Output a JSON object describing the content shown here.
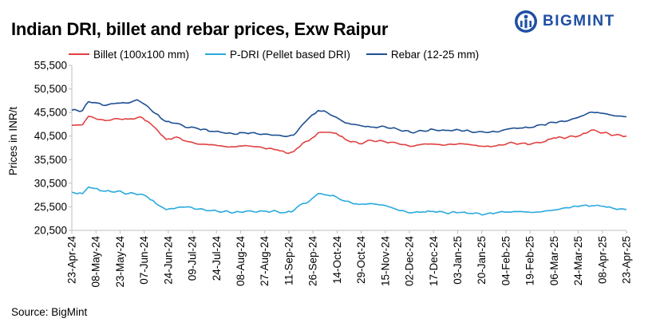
{
  "header": {
    "title": "Indian DRI, billet and rebar prices, Exw  Raipur",
    "brand_name": "BIGMINT"
  },
  "footer": {
    "source": "Source: BigMint"
  },
  "colors": {
    "billet": "#e04142",
    "pdri": "#2aa9df",
    "rebar": "#1d4f93",
    "axis": "#bfbfbf",
    "brand": "#1f4fa3"
  },
  "chart_data": {
    "type": "line",
    "title": "Indian DRI, billet and rebar prices, Exw  Raipur",
    "xlabel": "",
    "ylabel": "Prices in INR/t",
    "ylim": [
      20500,
      55500
    ],
    "yticks": [
      20500,
      25500,
      30500,
      35500,
      40500,
      45500,
      50500,
      55500
    ],
    "ytick_labels": [
      "20,500",
      "25,500",
      "30,500",
      "35,500",
      "40,500",
      "45,500",
      "50,500",
      "55,500"
    ],
    "x_range": [
      "2024-04-23",
      "2025-04-23"
    ],
    "categories": [
      "23-Apr-24",
      "08-May-24",
      "23-May-24",
      "07-Jun-24",
      "24-Jun-24",
      "09-Jul-24",
      "24-Jul-24",
      "08-Aug-24",
      "27-Aug-24",
      "11-Sep-24",
      "26-Sep-24",
      "14-Oct-24",
      "29-Oct-24",
      "15-Nov-24",
      "02-Dec-24",
      "17-Dec-24",
      "03-Jan-25",
      "20-Jan-25",
      "04-Feb-25",
      "19-Feb-25",
      "06-Mar-25",
      "24-Mar-25",
      "08-Apr-25",
      "23-Apr-25"
    ],
    "legend_position": "top",
    "grid": false,
    "series": [
      {
        "name": "Billet (100x100 mm)",
        "color": "#e04142",
        "points": [
          [
            "2024-04-23",
            42800
          ],
          [
            "2024-04-30",
            42900
          ],
          [
            "2024-05-04",
            44700
          ],
          [
            "2024-05-08",
            44300
          ],
          [
            "2024-05-15",
            43800
          ],
          [
            "2024-05-23",
            44200
          ],
          [
            "2024-05-30",
            44100
          ],
          [
            "2024-06-05",
            44400
          ],
          [
            "2024-06-07",
            44600
          ],
          [
            "2024-06-12",
            43600
          ],
          [
            "2024-06-17",
            42200
          ],
          [
            "2024-06-24",
            39800
          ],
          [
            "2024-07-01",
            40300
          ],
          [
            "2024-07-09",
            39300
          ],
          [
            "2024-07-15",
            38800
          ],
          [
            "2024-07-24",
            38700
          ],
          [
            "2024-08-01",
            38300
          ],
          [
            "2024-08-08",
            38200
          ],
          [
            "2024-08-15",
            38500
          ],
          [
            "2024-08-27",
            38000
          ],
          [
            "2024-09-05",
            37600
          ],
          [
            "2024-09-11",
            36900
          ],
          [
            "2024-09-16",
            37200
          ],
          [
            "2024-09-22",
            39000
          ],
          [
            "2024-09-26",
            39500
          ],
          [
            "2024-10-02",
            41200
          ],
          [
            "2024-10-08",
            41300
          ],
          [
            "2024-10-14",
            41100
          ],
          [
            "2024-10-20",
            39800
          ],
          [
            "2024-10-29",
            38900
          ],
          [
            "2024-11-06",
            39600
          ],
          [
            "2024-11-15",
            39300
          ],
          [
            "2024-11-23",
            39000
          ],
          [
            "2024-12-02",
            38300
          ],
          [
            "2024-12-10",
            38800
          ],
          [
            "2024-12-17",
            38800
          ],
          [
            "2024-12-25",
            38600
          ],
          [
            "2025-01-03",
            38900
          ],
          [
            "2025-01-10",
            38700
          ],
          [
            "2025-01-20",
            38300
          ],
          [
            "2025-01-27",
            38400
          ],
          [
            "2025-02-04",
            39000
          ],
          [
            "2025-02-12",
            38900
          ],
          [
            "2025-02-19",
            38800
          ],
          [
            "2025-02-27",
            39200
          ],
          [
            "2025-03-06",
            40100
          ],
          [
            "2025-03-15",
            40200
          ],
          [
            "2025-03-24",
            40700
          ],
          [
            "2025-03-31",
            41800
          ],
          [
            "2025-04-04",
            41500
          ],
          [
            "2025-04-08",
            41200
          ],
          [
            "2025-04-15",
            40700
          ],
          [
            "2025-04-23",
            40500
          ]
        ]
      },
      {
        "name": "P-DRI (Pellet based DRI)",
        "color": "#2aa9df",
        "points": [
          [
            "2024-04-23",
            28600
          ],
          [
            "2024-04-30",
            28300
          ],
          [
            "2024-05-04",
            29700
          ],
          [
            "2024-05-08",
            29400
          ],
          [
            "2024-05-15",
            28800
          ],
          [
            "2024-05-23",
            28800
          ],
          [
            "2024-05-30",
            28300
          ],
          [
            "2024-06-07",
            28200
          ],
          [
            "2024-06-12",
            27500
          ],
          [
            "2024-06-17",
            26300
          ],
          [
            "2024-06-24",
            24900
          ],
          [
            "2024-07-01",
            25300
          ],
          [
            "2024-07-09",
            25500
          ],
          [
            "2024-07-15",
            25000
          ],
          [
            "2024-07-24",
            24700
          ],
          [
            "2024-08-01",
            24500
          ],
          [
            "2024-08-08",
            24300
          ],
          [
            "2024-08-15",
            24500
          ],
          [
            "2024-08-27",
            24600
          ],
          [
            "2024-09-05",
            24500
          ],
          [
            "2024-09-11",
            24300
          ],
          [
            "2024-09-16",
            24700
          ],
          [
            "2024-09-22",
            26200
          ],
          [
            "2024-09-26",
            26600
          ],
          [
            "2024-10-02",
            28300
          ],
          [
            "2024-10-08",
            28000
          ],
          [
            "2024-10-14",
            27600
          ],
          [
            "2024-10-20",
            26700
          ],
          [
            "2024-10-29",
            26000
          ],
          [
            "2024-11-06",
            26200
          ],
          [
            "2024-11-15",
            25800
          ],
          [
            "2024-11-23",
            24900
          ],
          [
            "2024-12-02",
            24200
          ],
          [
            "2024-12-10",
            24400
          ],
          [
            "2024-12-17",
            24500
          ],
          [
            "2024-12-25",
            24200
          ],
          [
            "2025-01-03",
            24300
          ],
          [
            "2025-01-10",
            24100
          ],
          [
            "2025-01-20",
            23900
          ],
          [
            "2025-01-27",
            24200
          ],
          [
            "2025-02-04",
            24400
          ],
          [
            "2025-02-12",
            24500
          ],
          [
            "2025-02-19",
            24300
          ],
          [
            "2025-02-27",
            24500
          ],
          [
            "2025-03-06",
            24800
          ],
          [
            "2025-03-15",
            25300
          ],
          [
            "2025-03-24",
            25700
          ],
          [
            "2025-03-31",
            25700
          ],
          [
            "2025-04-08",
            25600
          ],
          [
            "2025-04-15",
            25100
          ],
          [
            "2025-04-23",
            24900
          ]
        ]
      },
      {
        "name": "Rebar (12-25 mm)",
        "color": "#1d4f93",
        "points": [
          [
            "2024-04-23",
            46000
          ],
          [
            "2024-04-30",
            45900
          ],
          [
            "2024-05-04",
            47800
          ],
          [
            "2024-05-08",
            47600
          ],
          [
            "2024-05-15",
            47000
          ],
          [
            "2024-05-23",
            47500
          ],
          [
            "2024-05-30",
            47500
          ],
          [
            "2024-06-05",
            48200
          ],
          [
            "2024-06-07",
            47800
          ],
          [
            "2024-06-12",
            46800
          ],
          [
            "2024-06-17",
            45300
          ],
          [
            "2024-06-24",
            43600
          ],
          [
            "2024-07-01",
            43200
          ],
          [
            "2024-07-09",
            42300
          ],
          [
            "2024-07-15",
            42100
          ],
          [
            "2024-07-24",
            41500
          ],
          [
            "2024-08-01",
            41200
          ],
          [
            "2024-08-08",
            40900
          ],
          [
            "2024-08-15",
            41200
          ],
          [
            "2024-08-27",
            40900
          ],
          [
            "2024-09-05",
            40700
          ],
          [
            "2024-09-11",
            40400
          ],
          [
            "2024-09-16",
            40700
          ],
          [
            "2024-09-22",
            43000
          ],
          [
            "2024-09-26",
            44300
          ],
          [
            "2024-10-02",
            45900
          ],
          [
            "2024-10-08",
            45500
          ],
          [
            "2024-10-14",
            44500
          ],
          [
            "2024-10-20",
            43300
          ],
          [
            "2024-10-29",
            42800
          ],
          [
            "2024-11-06",
            42400
          ],
          [
            "2024-11-15",
            42500
          ],
          [
            "2024-11-23",
            42000
          ],
          [
            "2024-12-02",
            41300
          ],
          [
            "2024-12-10",
            41600
          ],
          [
            "2024-12-17",
            41900
          ],
          [
            "2024-12-25",
            41700
          ],
          [
            "2025-01-03",
            41800
          ],
          [
            "2025-01-10",
            41500
          ],
          [
            "2025-01-20",
            41300
          ],
          [
            "2025-01-27",
            41400
          ],
          [
            "2025-02-04",
            42000
          ],
          [
            "2025-02-12",
            42200
          ],
          [
            "2025-02-19",
            42300
          ],
          [
            "2025-02-27",
            42900
          ],
          [
            "2025-03-06",
            43400
          ],
          [
            "2025-03-15",
            43700
          ],
          [
            "2025-03-24",
            44700
          ],
          [
            "2025-03-31",
            45600
          ],
          [
            "2025-04-04",
            45500
          ],
          [
            "2025-04-08",
            45300
          ],
          [
            "2025-04-15",
            44800
          ],
          [
            "2025-04-23",
            44600
          ]
        ]
      }
    ]
  }
}
